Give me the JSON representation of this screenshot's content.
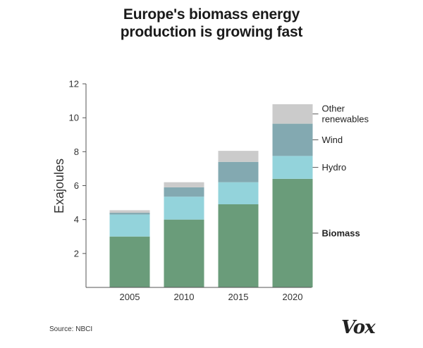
{
  "header": {
    "title_line1": "Europe's biomass energy",
    "title_line2": "production is growing fast"
  },
  "footer": {
    "source": "Source: NBCI",
    "logo": "Vox"
  },
  "chart_data": {
    "type": "bar",
    "stacked": true,
    "categories": [
      "2005",
      "2010",
      "2015",
      "2020"
    ],
    "series": [
      {
        "name": "Biomass",
        "color": "#6a9c7a",
        "values": [
          3.0,
          4.0,
          4.9,
          6.4
        ]
      },
      {
        "name": "Hydro",
        "color": "#93d3db",
        "values": [
          1.3,
          1.35,
          1.3,
          1.35
        ]
      },
      {
        "name": "Wind",
        "color": "#83a9b1",
        "values": [
          0.1,
          0.55,
          1.2,
          1.9
        ]
      },
      {
        "name": "Other renewables",
        "color": "#cbcbcb",
        "values": [
          0.15,
          0.3,
          0.65,
          1.15
        ]
      }
    ],
    "legend_labels": [
      {
        "lines": [
          "Other",
          "renewables"
        ],
        "series": "Other renewables",
        "bold": false
      },
      {
        "lines": [
          "Wind"
        ],
        "series": "Wind",
        "bold": false
      },
      {
        "lines": [
          "Hydro"
        ],
        "series": "Hydro",
        "bold": false
      },
      {
        "lines": [
          "Biomass"
        ],
        "series": "Biomass",
        "bold": true
      }
    ],
    "legend_placement": "right",
    "ylabel": "Exajoules",
    "xlabel": "",
    "ylim": [
      0,
      12
    ],
    "yticks": [
      2,
      4,
      6,
      8,
      10,
      12
    ],
    "grid": false
  }
}
